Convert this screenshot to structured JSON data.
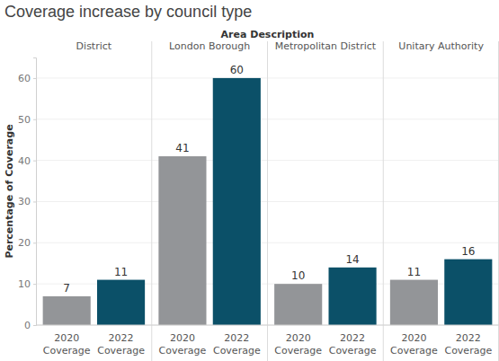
{
  "chart_data": {
    "type": "bar",
    "title": "Coverage increase by council type",
    "facet_label": "Area Description",
    "y_label": "Percentage of Coverage",
    "categories": [
      "2020 Coverage",
      "2022 Coverage"
    ],
    "colors": [
      "#939598",
      "#0b5068"
    ],
    "facets": [
      {
        "name": "District",
        "values": [
          7,
          11
        ]
      },
      {
        "name": "London Borough",
        "values": [
          41,
          60
        ]
      },
      {
        "name": "Metropolitan District",
        "values": [
          10,
          14
        ]
      },
      {
        "name": "Unitary Authority",
        "values": [
          11,
          16
        ]
      }
    ],
    "ylim": [
      0,
      65
    ],
    "yticks": [
      0,
      10,
      20,
      30,
      40,
      50,
      60
    ],
    "grid": true,
    "data_labels": true
  }
}
